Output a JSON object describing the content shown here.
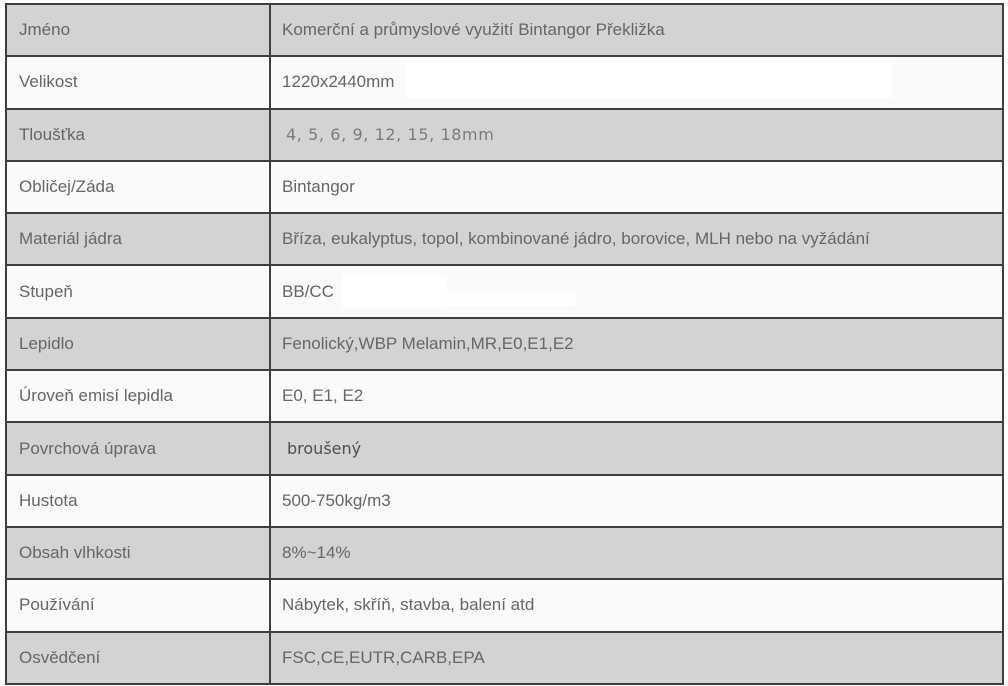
{
  "colors": {
    "row_gray": "#d3d3d3",
    "row_light": "#fafafa",
    "border": "#3f3f3f",
    "text": "#666666",
    "whiteout": "#ffffff"
  },
  "table": {
    "rows": [
      {
        "label": "Jméno",
        "value": "Komerční a průmyslové využití Bintangor Překližka"
      },
      {
        "label": "Velikost",
        "value": "1220x2440mm",
        "whiteout": "wide"
      },
      {
        "label": "Tloušťka",
        "value": "4, 5, 6, 9, 12, 15, 18mm",
        "variant": "pasted"
      },
      {
        "label": "Obličej/Záda",
        "value": "Bintangor"
      },
      {
        "label": "Materiál jádra",
        "value": "Bříza, eukalyptus, topol, kombinované jádro, borovice, MLH nebo na vyžádání"
      },
      {
        "label": "Stupeň",
        "value": "BB/CC",
        "whiteout": "small"
      },
      {
        "label": "Lepidlo",
        "value": "Fenolický,WBP Melamin,MR,E0,E1,E2"
      },
      {
        "label": "Úroveň emisí lepidla",
        "value": "E0, E1, E2"
      },
      {
        "label": "Povrchová úprava",
        "value": "broušený",
        "variant": "pasted-dark"
      },
      {
        "label": "Hustota",
        "value": "500-750kg/m3"
      },
      {
        "label": "Obsah vlhkosti",
        "value": "8%~14%"
      },
      {
        "label": "Používání",
        "value": "Nábytek, skříň, stavba, balení atd"
      },
      {
        "label": "Osvědčení",
        "value": "FSC,CE,EUTR,CARB,EPA"
      }
    ]
  }
}
